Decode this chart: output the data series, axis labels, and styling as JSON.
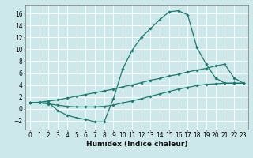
{
  "bg_color": "#cde8ea",
  "grid_color": "#b0d8dc",
  "line_color": "#1a7a6e",
  "line_width": 0.9,
  "marker": "D",
  "marker_size": 1.8,
  "xlabel": "Humidex (Indice chaleur)",
  "xlabel_fontsize": 6.5,
  "tick_fontsize": 5.5,
  "xlim": [
    -0.5,
    23.5
  ],
  "ylim": [
    -3.5,
    17.5
  ],
  "xticks": [
    0,
    1,
    2,
    3,
    4,
    5,
    6,
    7,
    8,
    9,
    10,
    11,
    12,
    13,
    14,
    15,
    16,
    17,
    18,
    19,
    20,
    21,
    22,
    23
  ],
  "yticks": [
    -2,
    0,
    2,
    4,
    6,
    8,
    10,
    12,
    14,
    16
  ],
  "curve1_x": [
    0,
    1,
    2,
    3,
    4,
    5,
    6,
    7,
    8,
    9,
    10,
    11,
    12,
    13,
    14,
    15,
    16,
    17,
    18,
    19,
    20,
    21,
    22,
    23
  ],
  "curve1_y": [
    1.0,
    1.0,
    1.0,
    -0.3,
    -1.1,
    -1.5,
    -1.8,
    -2.2,
    -2.2,
    1.7,
    6.7,
    9.8,
    12.0,
    13.5,
    15.0,
    16.3,
    16.5,
    15.8,
    10.3,
    7.5,
    5.2,
    4.3,
    4.3,
    4.3
  ],
  "curve2_x": [
    0,
    1,
    2,
    3,
    4,
    5,
    6,
    7,
    8,
    9,
    10,
    11,
    12,
    13,
    14,
    15,
    16,
    17,
    18,
    19,
    20,
    21,
    22,
    23
  ],
  "curve2_y": [
    1.0,
    1.1,
    1.3,
    1.5,
    1.8,
    2.1,
    2.4,
    2.7,
    3.0,
    3.3,
    3.7,
    4.0,
    4.4,
    4.8,
    5.1,
    5.5,
    5.8,
    6.2,
    6.5,
    6.8,
    7.2,
    7.5,
    5.2,
    4.3
  ],
  "curve3_x": [
    0,
    1,
    2,
    3,
    4,
    5,
    6,
    7,
    8,
    9,
    10,
    11,
    12,
    13,
    14,
    15,
    16,
    17,
    18,
    19,
    20,
    21,
    22,
    23
  ],
  "curve3_y": [
    1.0,
    1.0,
    0.8,
    0.6,
    0.4,
    0.3,
    0.3,
    0.3,
    0.4,
    0.6,
    1.0,
    1.3,
    1.7,
    2.1,
    2.5,
    2.9,
    3.3,
    3.6,
    3.9,
    4.1,
    4.2,
    4.3,
    4.3,
    4.3
  ]
}
